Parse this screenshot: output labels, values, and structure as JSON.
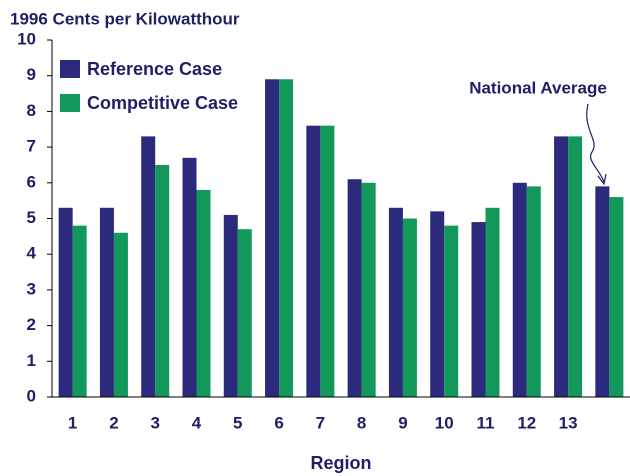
{
  "chart_data": {
    "type": "bar",
    "title": "1996 Cents per Kilowatthour",
    "x_label": "Region",
    "annotation": "National Average",
    "categories": [
      "1",
      "2",
      "3",
      "4",
      "5",
      "6",
      "7",
      "8",
      "9",
      "10",
      "11",
      "12",
      "13",
      null
    ],
    "series": [
      {
        "name": "Reference Case",
        "color": "#2b2a7c",
        "values": [
          5.3,
          5.3,
          7.3,
          6.7,
          5.1,
          8.9,
          7.6,
          6.1,
          5.3,
          5.2,
          4.9,
          6.0,
          7.3,
          5.9
        ]
      },
      {
        "name": "Competitive Case",
        "color": "#12985a",
        "values": [
          4.8,
          4.6,
          6.5,
          5.8,
          4.7,
          8.9,
          7.6,
          6.0,
          5.0,
          4.8,
          5.3,
          5.9,
          7.3,
          5.6
        ]
      }
    ],
    "ylim": [
      0,
      10
    ],
    "yticks": [
      0,
      1,
      2,
      3,
      4,
      5,
      6,
      7,
      8,
      9,
      10
    ],
    "grid": false,
    "legend": "upper left"
  }
}
